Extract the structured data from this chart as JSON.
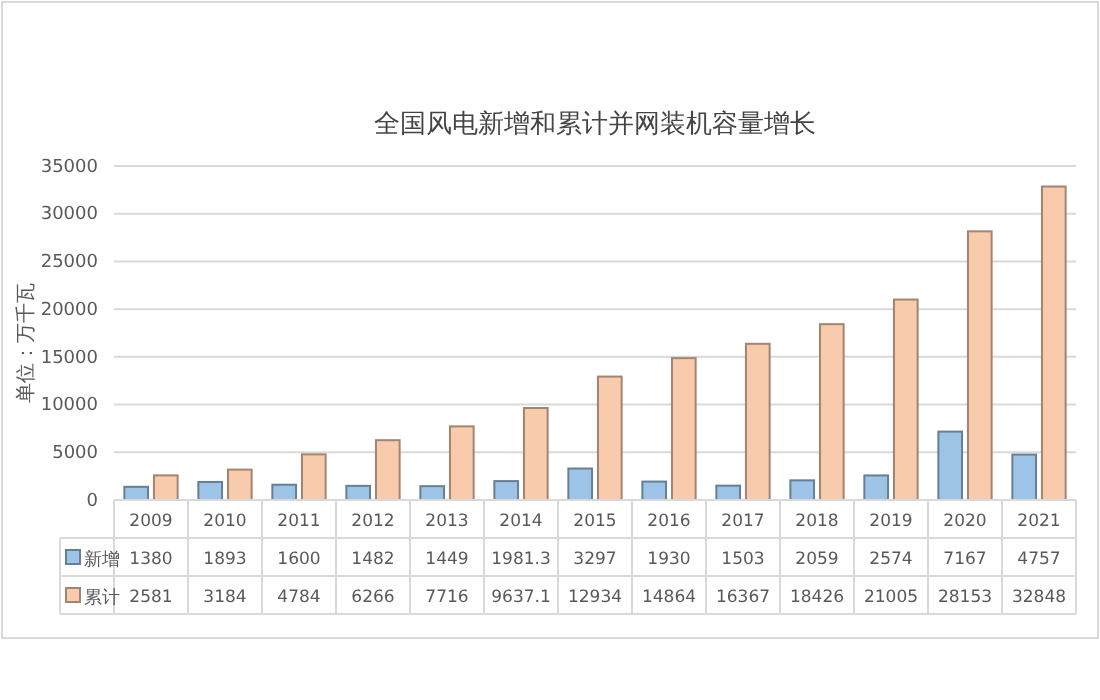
{
  "chart_data": {
    "type": "bar",
    "title": "全国风电新增和累计并网装机容量增长",
    "ylabel": "单位：万千瓦",
    "categories": [
      "2009",
      "2010",
      "2011",
      "2012",
      "2013",
      "2014",
      "2015",
      "2016",
      "2017",
      "2018",
      "2019",
      "2020",
      "2021"
    ],
    "series": [
      {
        "name": "新增",
        "color": "#9dc3e6",
        "values": [
          1380,
          1893,
          1600,
          1482,
          1449,
          1981.3,
          3297,
          1930,
          1503,
          2059,
          2574,
          7167,
          4757
        ]
      },
      {
        "name": "累计",
        "color": "#f8cbad",
        "values": [
          2581,
          3184,
          4784,
          6266,
          7716,
          9637.1,
          12934,
          14864,
          16367,
          18426,
          21005,
          28153,
          32848
        ]
      }
    ],
    "ylim": [
      0,
      35000
    ],
    "yticks": [
      0,
      5000,
      10000,
      15000,
      20000,
      25000,
      30000,
      35000
    ],
    "grid": "y",
    "legend": "bottom",
    "data_labels": true
  }
}
